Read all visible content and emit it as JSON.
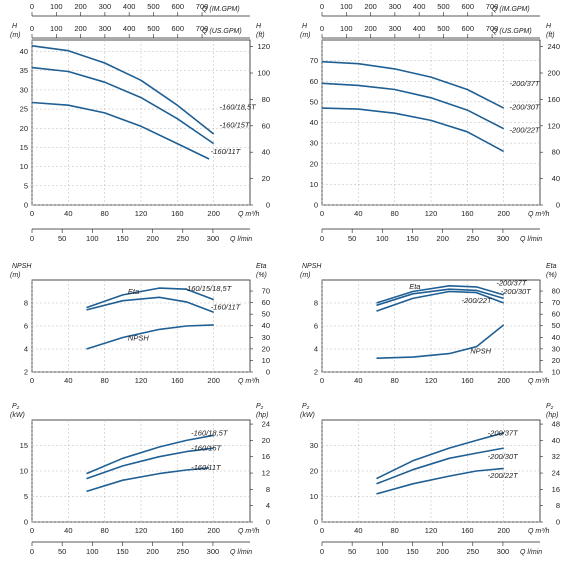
{
  "chart_data": [
    {
      "type": "line",
      "panel": "left-curves",
      "top_axes": [
        {
          "label": "Q (IM.GPM)",
          "ticks": [
            "0",
            "100",
            "200",
            "300",
            "400",
            "500",
            "600",
            "700"
          ]
        },
        {
          "label": "Q (US.GPM)",
          "ticks": [
            "0",
            "100",
            "200",
            "300",
            "400",
            "500",
            "600",
            "700"
          ]
        }
      ],
      "left_unit": [
        "H",
        "(m)"
      ],
      "right_unit": [
        "H",
        "(ft)"
      ],
      "left_ticks": [
        "0",
        "5",
        "10",
        "15",
        "20",
        "25",
        "30",
        "35",
        "40"
      ],
      "right_ticks": [
        "0",
        "20",
        "40",
        "60",
        "80",
        "100",
        "120"
      ],
      "x_label": "Q m³/h",
      "x_ticks": [
        "0",
        "40",
        "80",
        "120",
        "160",
        "200"
      ],
      "bottom_label": "Q l/min",
      "bottom_ticks": [
        "0",
        "50",
        "100",
        "150",
        "200",
        "250",
        "300"
      ],
      "xlim": [
        0,
        240
      ],
      "ylim": [
        0,
        43
      ],
      "series": [
        {
          "name": "-160/18,5T",
          "x": [
            0,
            40,
            80,
            120,
            160,
            200
          ],
          "y": [
            41.5,
            40.2,
            37,
            32.5,
            26,
            18.5
          ]
        },
        {
          "name": "-160/15T",
          "x": [
            0,
            40,
            80,
            120,
            160,
            200
          ],
          "y": [
            35.8,
            34.8,
            32,
            28,
            22.5,
            16
          ]
        },
        {
          "name": "-160/11T",
          "x": [
            0,
            40,
            80,
            120,
            160,
            195
          ],
          "y": [
            26.7,
            26,
            24,
            20.5,
            16,
            12
          ]
        }
      ]
    },
    {
      "type": "line",
      "panel": "right-curves",
      "top_axes": [
        {
          "label": "Q (IM.GPM)",
          "ticks": [
            "0",
            "100",
            "200",
            "300",
            "400",
            "500",
            "600",
            "700"
          ]
        },
        {
          "label": "Q (US.GPM)",
          "ticks": [
            "0",
            "100",
            "200",
            "300",
            "400",
            "500",
            "600",
            "700"
          ]
        }
      ],
      "left_unit": [
        "H",
        "(m)"
      ],
      "right_unit": [
        "H",
        "(ft)"
      ],
      "left_ticks": [
        "0",
        "10",
        "20",
        "30",
        "40",
        "50",
        "60",
        "70"
      ],
      "right_ticks": [
        "0",
        "40",
        "80",
        "120",
        "160",
        "200",
        "240"
      ],
      "x_label": "Q m³/h",
      "x_ticks": [
        "0",
        "40",
        "80",
        "120",
        "160",
        "200"
      ],
      "bottom_label": "Q l/min",
      "bottom_ticks": [
        "0",
        "50",
        "100",
        "150",
        "200",
        "250",
        "300"
      ],
      "xlim": [
        0,
        240
      ],
      "ylim": [
        0,
        80
      ],
      "series": [
        {
          "name": "-200/37T",
          "x": [
            0,
            40,
            80,
            120,
            160,
            200
          ],
          "y": [
            69.5,
            68.5,
            66,
            62,
            56,
            47
          ]
        },
        {
          "name": "-200/30T",
          "x": [
            0,
            40,
            80,
            120,
            160,
            200
          ],
          "y": [
            59,
            58,
            56,
            52,
            46,
            37
          ]
        },
        {
          "name": "-200/22T",
          "x": [
            0,
            40,
            80,
            120,
            160,
            200
          ],
          "y": [
            47,
            46.5,
            44.5,
            41,
            35.5,
            26
          ]
        }
      ]
    },
    {
      "type": "line",
      "panel": "left-npsh",
      "left_unit": [
        "NPSH",
        "(m)"
      ],
      "right_unit": [
        "Eta",
        "(%)"
      ],
      "left_ticks": [
        "2",
        "4",
        "6",
        "8"
      ],
      "right_ticks": [
        "0",
        "10",
        "20",
        "30",
        "40",
        "50",
        "60",
        "70"
      ],
      "x_label": "Q m³/h",
      "x_ticks": [
        "0",
        "40",
        "80",
        "120",
        "160",
        "200"
      ],
      "xlim": [
        0,
        240
      ],
      "ylim": [
        2,
        10
      ],
      "annotations": [
        "Eta",
        "NPSH",
        "-160/15/18,5T",
        "-160/11T"
      ],
      "series": [
        {
          "name": "-160/15/18,5T",
          "x": [
            60,
            100,
            140,
            170,
            200
          ],
          "y": [
            7.6,
            8.7,
            9.3,
            9.2,
            8.3
          ]
        },
        {
          "name": "-160/11T",
          "x": [
            60,
            100,
            140,
            170,
            200
          ],
          "y": [
            7.4,
            8.2,
            8.5,
            8.1,
            7.2
          ]
        },
        {
          "name": "NPSH",
          "x": [
            60,
            100,
            140,
            170,
            200
          ],
          "y": [
            4,
            5,
            5.7,
            6,
            6.1
          ]
        }
      ]
    },
    {
      "type": "line",
      "panel": "right-npsh",
      "left_unit": [
        "NPSH",
        "(m)"
      ],
      "right_unit": [
        "Eta",
        "(%)"
      ],
      "left_ticks": [
        "2",
        "4",
        "6",
        "8"
      ],
      "right_ticks": [
        "10",
        "20",
        "30",
        "40",
        "50",
        "60",
        "70",
        "80"
      ],
      "x_label": "Q m³/h",
      "x_ticks": [
        "0",
        "40",
        "80",
        "120",
        "160",
        "200"
      ],
      "xlim": [
        0,
        240
      ],
      "ylim": [
        2,
        10
      ],
      "annotations": [
        "Eta",
        "NPSH",
        "-200/37T",
        "-200/30T",
        "-200/22T"
      ],
      "series": [
        {
          "name": "-200/37T",
          "x": [
            60,
            100,
            140,
            170,
            200
          ],
          "y": [
            8,
            9,
            9.5,
            9.4,
            8.7
          ]
        },
        {
          "name": "-200/30T",
          "x": [
            60,
            100,
            140,
            170,
            200
          ],
          "y": [
            7.8,
            8.8,
            9.2,
            9.1,
            8.4
          ]
        },
        {
          "name": "-200/22T",
          "x": [
            60,
            100,
            140,
            170,
            200
          ],
          "y": [
            7.3,
            8.4,
            9,
            8.9,
            8
          ]
        },
        {
          "name": "NPSH",
          "x": [
            60,
            100,
            140,
            170,
            200
          ],
          "y": [
            3.2,
            3.3,
            3.6,
            4.2,
            6.1
          ]
        }
      ]
    },
    {
      "type": "line",
      "panel": "left-power",
      "left_unit": [
        "P₂",
        "(kW)"
      ],
      "right_unit": [
        "P₂",
        "(hp)"
      ],
      "left_ticks": [
        "0",
        "5",
        "10",
        "15"
      ],
      "right_ticks": [
        "0",
        "4",
        "8",
        "12",
        "16",
        "20",
        "24"
      ],
      "x_label": "Q m³/h",
      "x_ticks": [
        "0",
        "40",
        "80",
        "120",
        "160",
        "200"
      ],
      "bottom_label": "Q l/min",
      "bottom_ticks": [
        "0",
        "50",
        "100",
        "150",
        "200",
        "250",
        "300"
      ],
      "xlim": [
        0,
        240
      ],
      "ylim": [
        0,
        20
      ],
      "series": [
        {
          "name": "-160/18,5T",
          "x": [
            60,
            100,
            140,
            170,
            200
          ],
          "y": [
            9.5,
            12.5,
            14.7,
            16,
            17
          ]
        },
        {
          "name": "-160/15T",
          "x": [
            60,
            100,
            140,
            170,
            200
          ],
          "y": [
            8.5,
            11,
            12.8,
            13.8,
            14.5
          ]
        },
        {
          "name": "-160/11T",
          "x": [
            60,
            100,
            140,
            170,
            195
          ],
          "y": [
            6,
            8.2,
            9.5,
            10.2,
            10.6
          ]
        }
      ]
    },
    {
      "type": "line",
      "panel": "right-power",
      "left_unit": [
        "P₂",
        "(kW)"
      ],
      "right_unit": [
        "P₂",
        "(hp)"
      ],
      "left_ticks": [
        "0",
        "10",
        "20",
        "30"
      ],
      "right_ticks": [
        "0",
        "8",
        "16",
        "24",
        "32",
        "40",
        "48"
      ],
      "x_label": "Q m³/h",
      "x_ticks": [
        "0",
        "40",
        "80",
        "120",
        "160",
        "200"
      ],
      "bottom_label": "Q l/min",
      "bottom_ticks": [
        "0",
        "50",
        "100",
        "150",
        "200",
        "250",
        "300"
      ],
      "xlim": [
        0,
        240
      ],
      "ylim": [
        0,
        40
      ],
      "series": [
        {
          "name": "-200/37T",
          "x": [
            60,
            100,
            140,
            170,
            200
          ],
          "y": [
            17,
            24,
            29,
            32,
            35
          ]
        },
        {
          "name": "-200/30T",
          "x": [
            60,
            100,
            140,
            170,
            200
          ],
          "y": [
            15,
            20.5,
            25,
            27,
            29
          ]
        },
        {
          "name": "-200/22T",
          "x": [
            60,
            100,
            140,
            170,
            200
          ],
          "y": [
            11,
            15,
            18,
            20,
            21
          ]
        }
      ]
    }
  ],
  "style": {
    "curve_color": "#1f5f93",
    "grid_color": "#b9b9b9",
    "axis_color": "#222222"
  }
}
